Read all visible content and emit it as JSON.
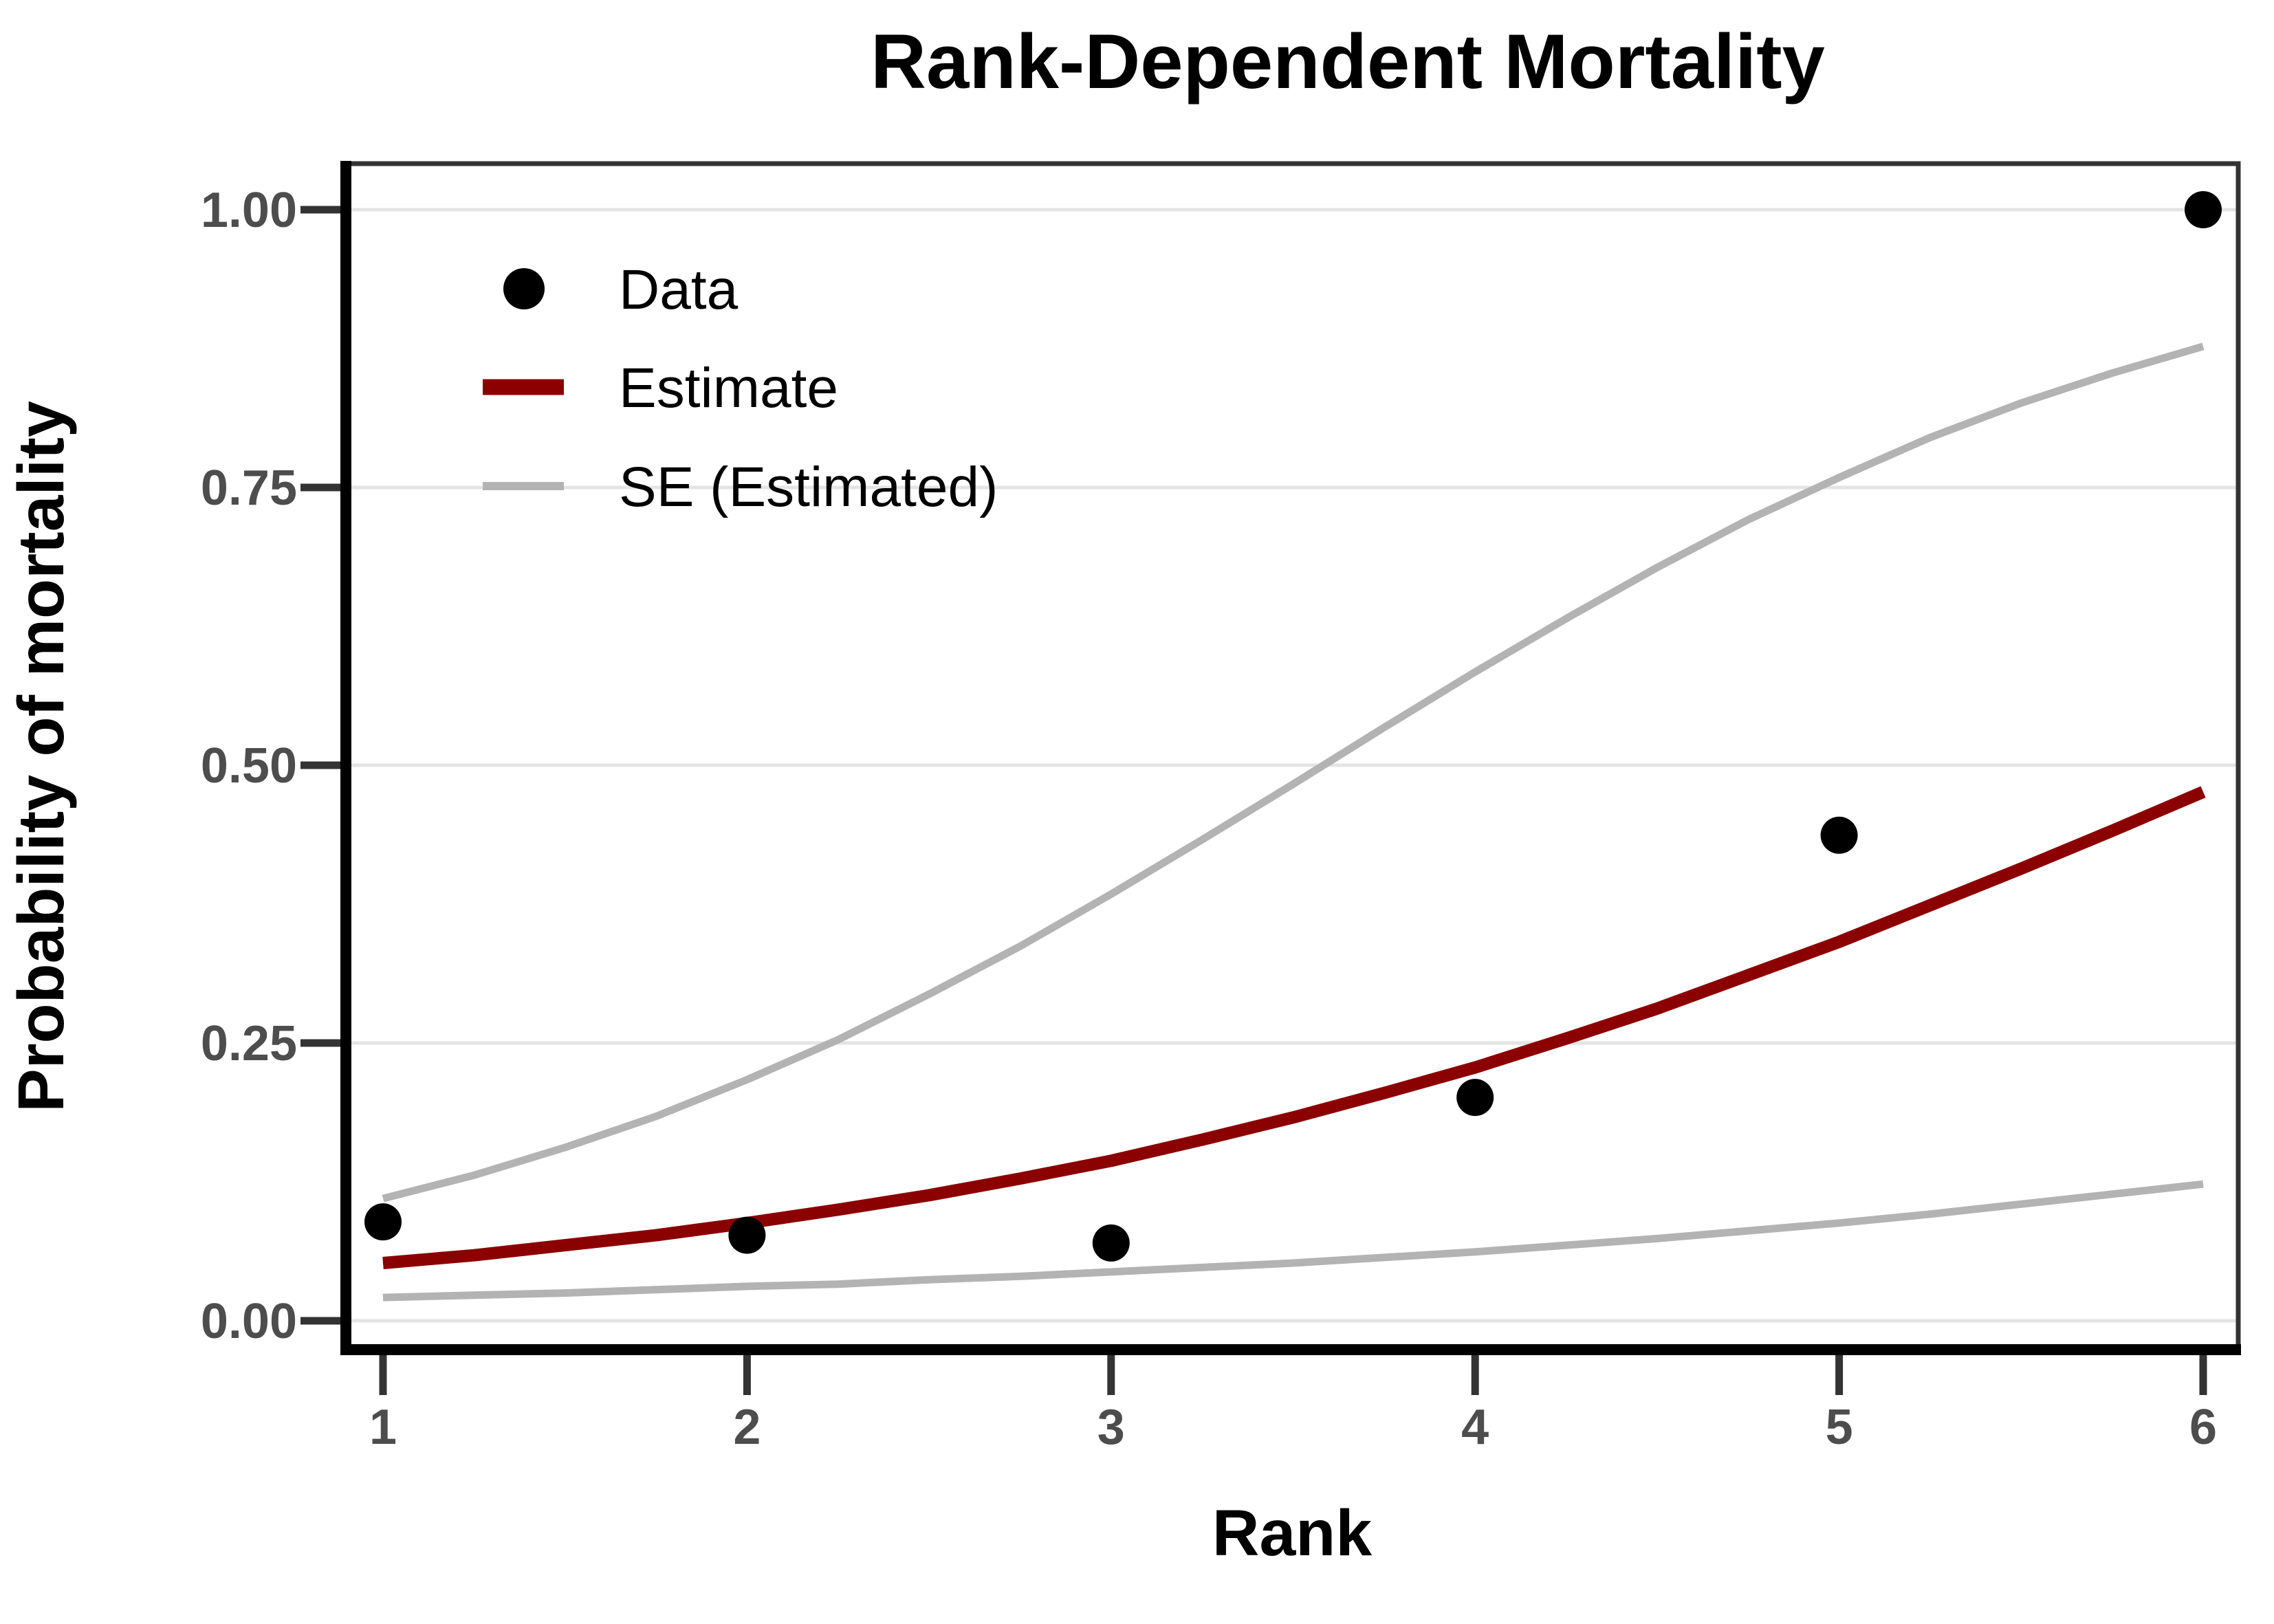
{
  "figure": {
    "title": "Rank-Dependent Mortality",
    "x_axis": {
      "label": "Rank",
      "tick_labels": [
        "1",
        "2",
        "3",
        "4",
        "5",
        "6"
      ],
      "tick_values": [
        1,
        2,
        3,
        4,
        5,
        6
      ],
      "range": [
        1,
        6
      ]
    },
    "y_axis": {
      "label": "Probability of mortality",
      "tick_labels": [
        "0.00",
        "0.25",
        "0.50",
        "0.75",
        "1.00"
      ],
      "tick_values": [
        0,
        0.25,
        0.5,
        0.75,
        1.0
      ],
      "range": [
        0,
        1
      ]
    },
    "legend": {
      "items": [
        {
          "label": "Data",
          "marker": "point",
          "color": "#000000"
        },
        {
          "label": "Estimate",
          "marker": "thick-line",
          "color": "#8B0000"
        },
        {
          "label": "SE (Estimated)",
          "marker": "thin-line",
          "color": "#b3b3b3"
        }
      ]
    }
  },
  "colors": {
    "estimate_red": "#8B0000",
    "se_gray": "#b3b3b3",
    "point_black": "#000000",
    "gridline": "#e4e4e4",
    "panel_border": "#333333",
    "axis_line": "#000000",
    "tick_mark": "#333333",
    "tick_label": "#4d4d4d",
    "text": "#000000",
    "background": "#ffffff"
  },
  "chart_data": {
    "type": "scatter+line",
    "title": "Rank-Dependent Mortality",
    "xlabel": "Rank",
    "ylabel": "Probability of mortality",
    "xlim": [
      1,
      6
    ],
    "ylim": [
      0,
      1
    ],
    "grid": "horizontal-major-only",
    "legend_position": "inside-top-left",
    "points": {
      "name": "Data",
      "color": "#000000",
      "x": [
        1,
        2,
        3,
        4,
        5,
        6
      ],
      "y": [
        0.089,
        0.077,
        0.07,
        0.201,
        0.437,
        1.0
      ]
    },
    "series": [
      {
        "name": "Estimate",
        "color": "#8B0000",
        "stroke_width": 18,
        "x": [
          1,
          1.25,
          1.5,
          1.75,
          2,
          2.25,
          2.5,
          2.75,
          3,
          3.25,
          3.5,
          3.75,
          4,
          4.25,
          4.5,
          4.75,
          5,
          5.25,
          5.5,
          5.75,
          6
        ],
        "y": [
          0.052,
          0.059,
          0.068,
          0.077,
          0.088,
          0.1,
          0.113,
          0.128,
          0.144,
          0.163,
          0.183,
          0.205,
          0.228,
          0.254,
          0.281,
          0.311,
          0.341,
          0.374,
          0.407,
          0.441,
          0.476
        ]
      },
      {
        "name": "SE (Estimated) upper",
        "color": "#b3b3b3",
        "stroke_width": 11,
        "x": [
          1,
          1.25,
          1.5,
          1.75,
          2,
          2.25,
          2.5,
          2.75,
          3,
          3.25,
          3.5,
          3.75,
          4,
          4.25,
          4.5,
          4.75,
          5,
          5.25,
          5.5,
          5.75,
          6
        ],
        "y": [
          0.11,
          0.131,
          0.156,
          0.184,
          0.217,
          0.253,
          0.294,
          0.337,
          0.384,
          0.433,
          0.483,
          0.534,
          0.584,
          0.632,
          0.678,
          0.721,
          0.759,
          0.795,
          0.826,
          0.853,
          0.877
        ]
      },
      {
        "name": "SE (Estimated) lower",
        "color": "#b3b3b3",
        "stroke_width": 11,
        "x": [
          1,
          1.25,
          1.5,
          1.75,
          2,
          2.25,
          2.5,
          2.75,
          3,
          3.25,
          3.5,
          3.75,
          4,
          4.25,
          4.5,
          4.75,
          5,
          5.25,
          5.5,
          5.75,
          6
        ],
        "y": [
          0.021,
          0.023,
          0.025,
          0.028,
          0.031,
          0.033,
          0.037,
          0.04,
          0.044,
          0.048,
          0.052,
          0.057,
          0.062,
          0.068,
          0.074,
          0.081,
          0.088,
          0.096,
          0.105,
          0.114,
          0.123
        ]
      }
    ]
  }
}
